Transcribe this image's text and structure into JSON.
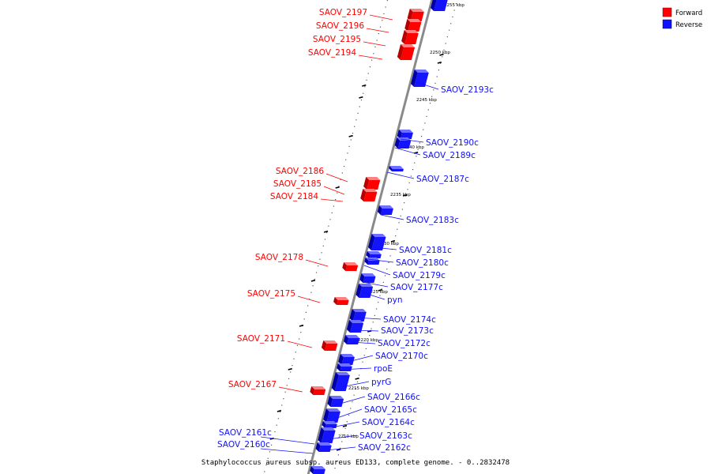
{
  "caption": "Staphylococcus aureus subsp. aureus ED133, complete genome. - 0..2832478",
  "legend": [
    {
      "label": "Forward",
      "color": "#ff0000"
    },
    {
      "label": "Reverse",
      "color": "#1010ff"
    }
  ],
  "colors": {
    "forward": "#ff0000",
    "reverse": "#1010ff",
    "axis": "#888888"
  },
  "ticks": [
    "2255 kbp",
    "2250 kbp",
    "2245 kbp",
    "2240 kbp",
    "2235 kbp",
    "2230 kbp",
    "2225 kbp",
    "2220 kbp",
    "2215 kbp",
    "2210 kbp"
  ],
  "forward_genes": [
    "SAOV_2197",
    "SAOV_2196",
    "SAOV_2195",
    "SAOV_2194",
    "SAOV_2186",
    "SAOV_2185",
    "SAOV_2184",
    "SAOV_2178",
    "SAOV_2175",
    "SAOV_2171",
    "SAOV_2167"
  ],
  "reverse_genes": [
    "SAOV_2193c",
    "SAOV_2190c",
    "SAOV_2189c",
    "SAOV_2187c",
    "SAOV_2183c",
    "SAOV_2181c",
    "SAOV_2180c",
    "SAOV_2179c",
    "SAOV_2177c",
    "pyn",
    "SAOV_2174c",
    "SAOV_2173c",
    "SAOV_2172c",
    "SAOV_2170c",
    "rpoE",
    "pyrG",
    "SAOV_2166c",
    "SAOV_2165c",
    "SAOV_2164c",
    "SAOV_2163c",
    "SAOV_2162c",
    "SAOV_2161c",
    "SAOV_2160c"
  ]
}
